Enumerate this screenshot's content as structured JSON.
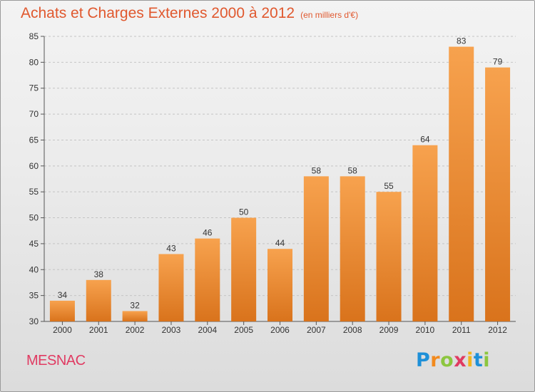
{
  "header": {
    "title": "Achats et Charges Externes 2000 à 2012",
    "subtitle": "(en milliers d'€)"
  },
  "footer": {
    "commune": "MESNAC",
    "logo_letters": [
      {
        "char": "P",
        "color": "#1e90d8"
      },
      {
        "char": "r",
        "color": "#f28a1e"
      },
      {
        "char": "o",
        "color": "#8cc63f"
      },
      {
        "char": "x",
        "color": "#e03b62"
      },
      {
        "char": "i",
        "color": "#f2b51e"
      },
      {
        "char": "t",
        "color": "#1e90d8"
      },
      {
        "char": "i",
        "color": "#8cc63f"
      }
    ]
  },
  "colors": {
    "title": "#e0582e",
    "commune": "#e03b62",
    "bar_top": "#f7a24e",
    "bar_bottom": "#d9731c"
  },
  "chart_data": {
    "type": "bar",
    "title": "Achats et Charges Externes 2000 à 2012",
    "subtitle": "(en milliers d'€)",
    "xlabel": "",
    "ylabel": "",
    "categories": [
      "2000",
      "2001",
      "2002",
      "2003",
      "2004",
      "2005",
      "2006",
      "2007",
      "2008",
      "2009",
      "2010",
      "2011",
      "2012"
    ],
    "values": [
      34,
      38,
      32,
      43,
      46,
      50,
      44,
      58,
      58,
      55,
      64,
      83,
      79
    ],
    "ylim": [
      30,
      85
    ],
    "yticks": [
      30,
      35,
      40,
      45,
      50,
      55,
      60,
      65,
      70,
      75,
      80,
      85
    ],
    "grid": true
  }
}
